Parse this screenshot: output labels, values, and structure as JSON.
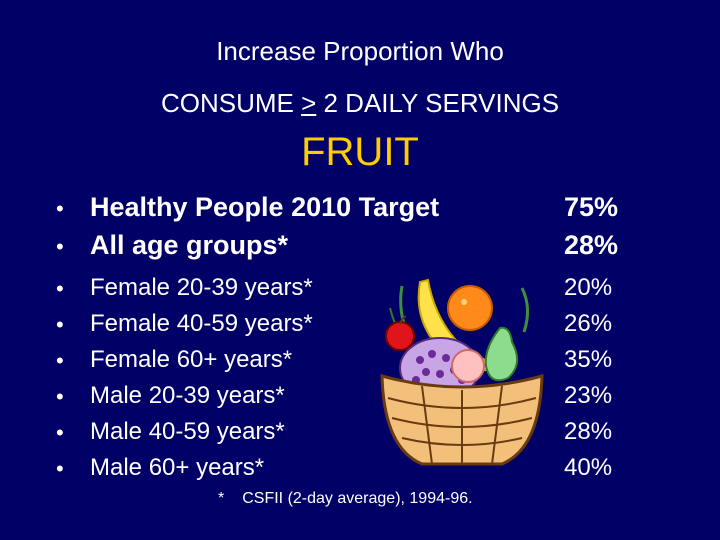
{
  "slide": {
    "title_line1": "Increase Proportion Who",
    "title_line2_prefix": "CONSUME ",
    "title_line2_symbol": ">",
    "title_line2_suffix": " 2 DAILY SERVINGS",
    "title_line3": "FRUIT"
  },
  "rows": [
    {
      "label": "Healthy People 2010 Target",
      "value": "75%"
    },
    {
      "label": "All age groups*",
      "value": "28%"
    },
    {
      "label": "Female 20-39 years*",
      "value": "20%"
    },
    {
      "label": "Female 40-59 years*",
      "value": "26%"
    },
    {
      "label": "Female 60+ years*",
      "value": "35%"
    },
    {
      "label": "Male 20-39 years*",
      "value": "23%"
    },
    {
      "label": "Male 40-59 years*",
      "value": "28%"
    },
    {
      "label": "Male 60+ years*",
      "value": "40%"
    }
  ],
  "bullet": "•",
  "footnote": {
    "marker": "*",
    "text": "CSFII (2-day average), 1994-96."
  },
  "clipart": "fruit-basket-icon",
  "colors": {
    "background": "#000066",
    "text": "#ffffff",
    "accent": "#ffcc00"
  }
}
